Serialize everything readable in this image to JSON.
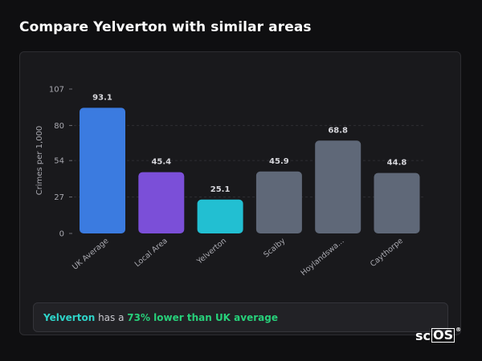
{
  "header": {
    "title": "Compare Yelverton with similar areas"
  },
  "chart_data": {
    "type": "bar",
    "ylabel": "Crimes per 1,000",
    "xlabel": "",
    "ylim": [
      0,
      107
    ],
    "y_ticks": [
      0,
      27,
      54,
      80,
      107
    ],
    "categories": [
      "UK Average",
      "Local Area",
      "Yelverton",
      "Scalby",
      "Hoylandswa...",
      "Caythorpe"
    ],
    "values": [
      93.1,
      45.4,
      25.1,
      45.9,
      68.8,
      44.8
    ],
    "value_labels": [
      "93.1",
      "45.4",
      "25.1",
      "45.9",
      "68.8",
      "44.8"
    ],
    "colors": [
      "#3b7be0",
      "#7b4fd8",
      "#22bfd2",
      "#5f6878",
      "#5f6878",
      "#5f6878"
    ],
    "grid": "dashed horizontal at reference ticks"
  },
  "summary": {
    "area": "Yelverton",
    "middle": " has a ",
    "comparison": "73% lower than UK average"
  },
  "logo": {
    "prefix": "sc",
    "boxed": "OS",
    "mark": "®"
  }
}
